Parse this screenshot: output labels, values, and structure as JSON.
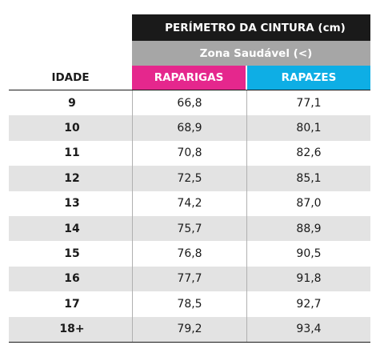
{
  "table": {
    "title": "PERÍMETRO DA CINTURA (cm)",
    "subtitle": "Zona Saudável (<)",
    "col_age": "IDADE",
    "col_girls": "RAPARIGAS",
    "col_boys": "RAPAZES",
    "colors": {
      "title_bg": "#1a1a1a",
      "subtitle_bg": "#a6a6a6",
      "girls_bg": "#e5278d",
      "boys_bg": "#0eaee5",
      "row_shade": "#e3e3e3"
    },
    "rows": [
      {
        "age": "9",
        "girls": "66,8",
        "boys": "77,1"
      },
      {
        "age": "10",
        "girls": "68,9",
        "boys": "80,1"
      },
      {
        "age": "11",
        "girls": "70,8",
        "boys": "82,6"
      },
      {
        "age": "12",
        "girls": "72,5",
        "boys": "85,1"
      },
      {
        "age": "13",
        "girls": "74,2",
        "boys": "87,0"
      },
      {
        "age": "14",
        "girls": "75,7",
        "boys": "88,9"
      },
      {
        "age": "15",
        "girls": "76,8",
        "boys": "90,5"
      },
      {
        "age": "16",
        "girls": "77,7",
        "boys": "91,8"
      },
      {
        "age": "17",
        "girls": "78,5",
        "boys": "92,7"
      },
      {
        "age": "18+",
        "girls": "79,2",
        "boys": "93,4"
      }
    ]
  }
}
